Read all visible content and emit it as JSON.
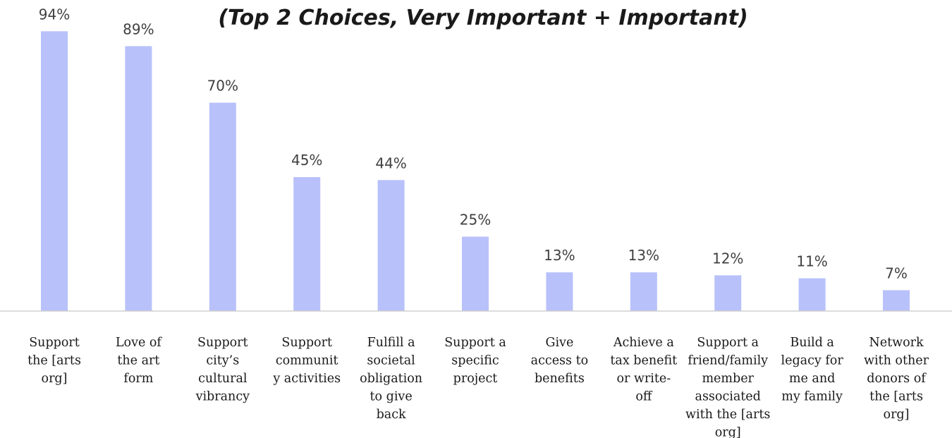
{
  "chart_data": {
    "type": "bar",
    "title": "",
    "subtitle": "(Top 2 Choices, Very Important + Important)",
    "categories": [
      "Support the [arts org]",
      "Love of the art form",
      "Support city’s cultural vibrancy",
      "Support community activities",
      "Fulfill a societal obligation to give back",
      "Support a specific project",
      "Give access to benefits",
      "Achieve a tax benefit or write-off",
      "Support a friend/family member associated with the [arts org]",
      "Build a legacy for me and my family",
      "Network with other donors of the [arts org]"
    ],
    "category_label_lines": [
      [
        "Support",
        "the [arts",
        "org]"
      ],
      [
        "Love of",
        "the art",
        "form"
      ],
      [
        "Support",
        "city’s",
        "cultural",
        "vibrancy"
      ],
      [
        "Support",
        "communit",
        "y activities"
      ],
      [
        "Fulfill a",
        "societal",
        "obligation",
        "to give",
        "back"
      ],
      [
        "Support a",
        "specific",
        "project"
      ],
      [
        "Give",
        "access to",
        "benefits"
      ],
      [
        "Achieve a",
        "tax benefit",
        "or write-",
        "off"
      ],
      [
        "Support a",
        "friend/family",
        "member",
        "associated",
        "with the [arts",
        "org]"
      ],
      [
        "Build a",
        "legacy for",
        "me and",
        "my family"
      ],
      [
        "Network",
        "with other",
        "donors of",
        "the [arts",
        "org]"
      ]
    ],
    "values": [
      94,
      89,
      70,
      45,
      44,
      25,
      13,
      13,
      12,
      11,
      7
    ],
    "data_labels": [
      "94%",
      "89%",
      "70%",
      "45%",
      "44%",
      "25%",
      "13%",
      "13%",
      "12%",
      "11%",
      "7%"
    ],
    "unit": "%",
    "ylim": [
      0,
      100
    ],
    "xlabel": "",
    "ylabel": "",
    "grid": false,
    "legend": "none",
    "bar_color": "#b8c1fa"
  }
}
